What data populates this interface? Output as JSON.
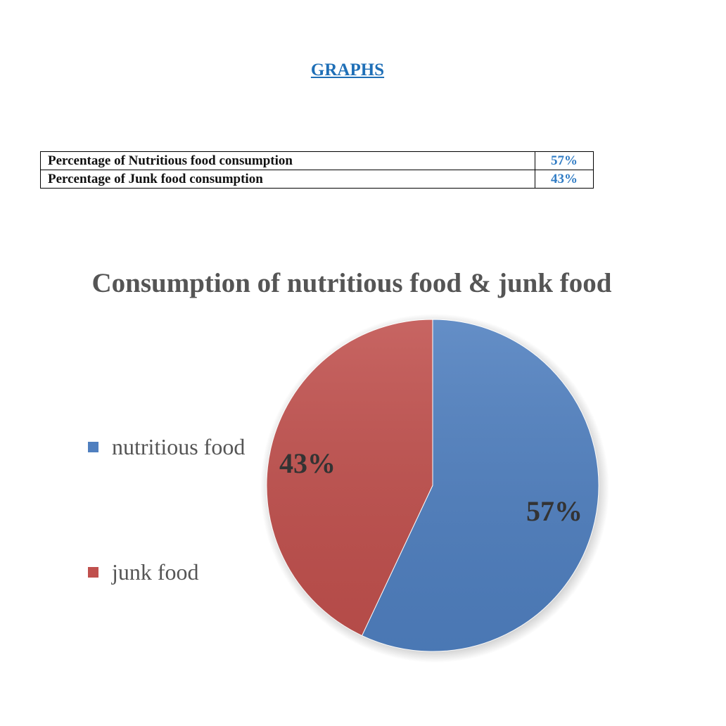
{
  "heading": "GRAPHS",
  "table": {
    "rows": [
      {
        "label": "Percentage of Nutritious food consumption",
        "value": "57%"
      },
      {
        "label": "Percentage of Junk food consumption",
        "value": "43%"
      }
    ]
  },
  "chart_data": {
    "type": "pie",
    "title": "Consumption of nutritious food & junk food",
    "categories": [
      "nutritious food",
      "junk food"
    ],
    "values": [
      57,
      43
    ],
    "data_labels": [
      "57%",
      "43%"
    ],
    "colors": [
      "#4f7fbf",
      "#c0504d"
    ],
    "legend_position": "left"
  }
}
